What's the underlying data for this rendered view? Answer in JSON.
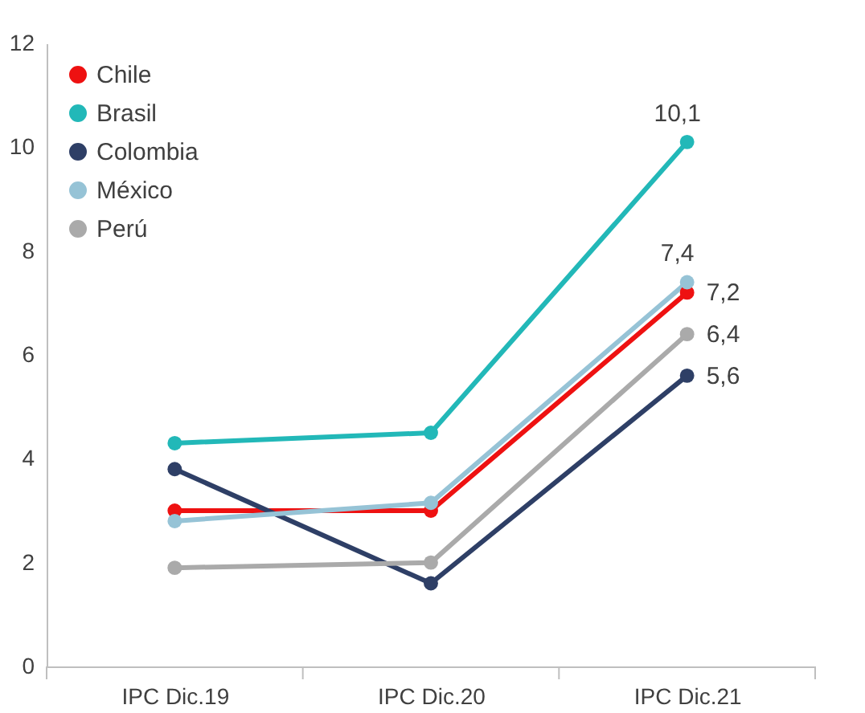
{
  "chart_data": {
    "type": "line",
    "categories": [
      "IPC Dic.19",
      "IPC Dic.20",
      "IPC Dic.21"
    ],
    "series": [
      {
        "name": "Chile",
        "color": "#ee1111",
        "values": [
          3.0,
          3.0,
          7.2
        ],
        "value_labels": [
          null,
          null,
          "7,2"
        ]
      },
      {
        "name": "Brasil",
        "color": "#22b8b8",
        "values": [
          4.3,
          4.5,
          10.1
        ],
        "value_labels": [
          null,
          null,
          "10,1"
        ]
      },
      {
        "name": "Colombia",
        "color": "#2e3f66",
        "values": [
          3.8,
          1.6,
          5.6
        ],
        "value_labels": [
          null,
          null,
          "5,6"
        ]
      },
      {
        "name": "México",
        "color": "#96c3d6",
        "values": [
          2.8,
          3.15,
          7.4
        ],
        "value_labels": [
          null,
          null,
          "7,4"
        ]
      },
      {
        "name": "Perú",
        "color": "#aaaaaa",
        "values": [
          1.9,
          2.0,
          6.4
        ],
        "value_labels": [
          null,
          null,
          "6,4"
        ]
      }
    ],
    "ylim": [
      0,
      12
    ],
    "yticks": [
      0,
      2,
      4,
      6,
      8,
      10,
      12
    ],
    "grid": false,
    "legend": "top left",
    "marker": "circle",
    "line_style": "solid"
  }
}
